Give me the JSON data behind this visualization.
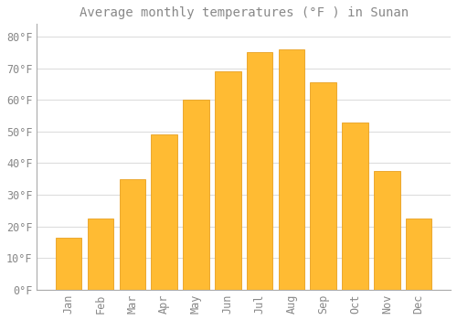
{
  "title": "Average monthly temperatures (°F ) in Sunan",
  "months": [
    "Jan",
    "Feb",
    "Mar",
    "Apr",
    "May",
    "Jun",
    "Jul",
    "Aug",
    "Sep",
    "Oct",
    "Nov",
    "Dec"
  ],
  "values": [
    16.5,
    22.5,
    35.0,
    49.0,
    60.0,
    69.0,
    75.0,
    76.0,
    65.5,
    53.0,
    37.5,
    22.5
  ],
  "bar_color": "#FFBB33",
  "bar_edge_color": "#E8A020",
  "background_color": "#FFFFFF",
  "grid_color": "#DDDDDD",
  "text_color": "#888888",
  "spine_color": "#AAAAAA",
  "yticks": [
    0,
    10,
    20,
    30,
    40,
    50,
    60,
    70,
    80
  ],
  "ytick_labels": [
    "0°F",
    "10°F",
    "20°F",
    "30°F",
    "40°F",
    "50°F",
    "60°F",
    "70°F",
    "80°F"
  ],
  "ylim": [
    0,
    84
  ],
  "title_fontsize": 10,
  "tick_fontsize": 8.5
}
